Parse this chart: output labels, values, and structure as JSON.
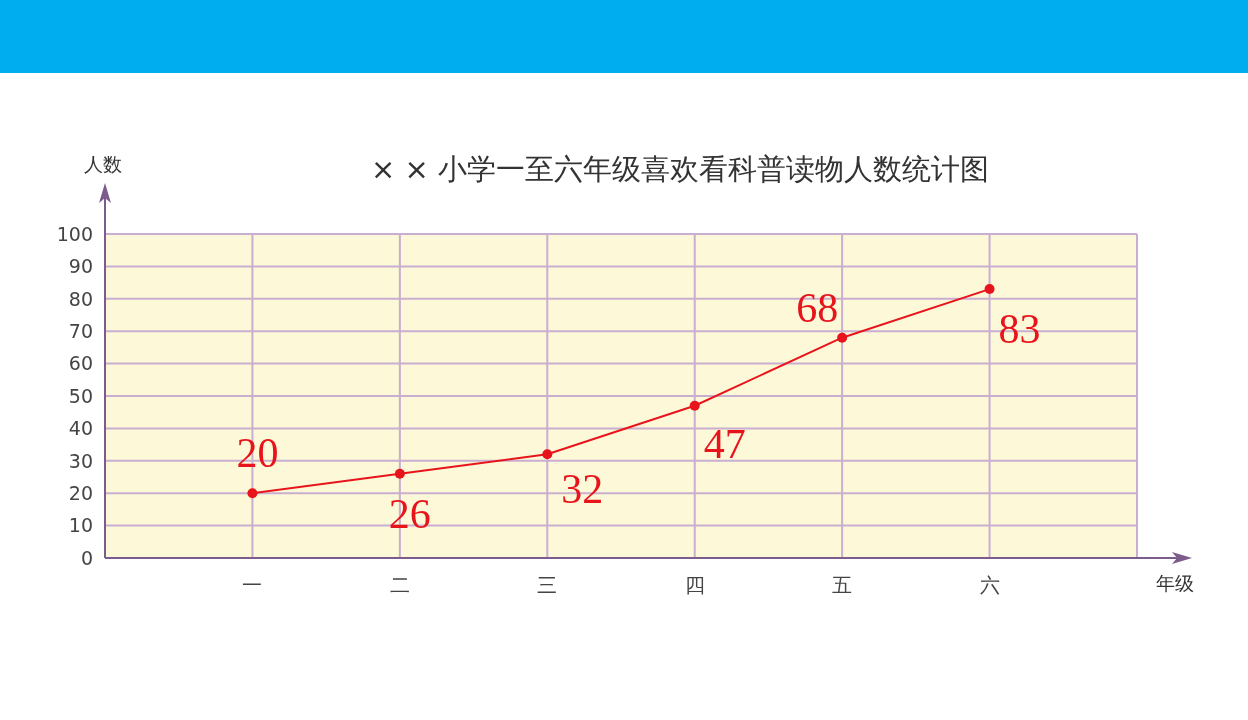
{
  "chart_data": {
    "type": "line",
    "title": "× × 小学一至六年级喜欢看科普读物人数统计图",
    "xlabel": "年级",
    "ylabel": "人数",
    "categories": [
      "一",
      "二",
      "三",
      "四",
      "五",
      "六"
    ],
    "series": [
      {
        "color": "#e8141c",
        "values": [
          20,
          26,
          32,
          47,
          68,
          83
        ]
      }
    ],
    "ylim": [
      0,
      100
    ],
    "yticks": [
      0,
      10,
      20,
      30,
      40,
      50,
      60,
      70,
      80,
      90,
      100
    ],
    "grid": true,
    "legend": false,
    "marker": "circle",
    "line_style": "solid",
    "data_labels": true
  }
}
